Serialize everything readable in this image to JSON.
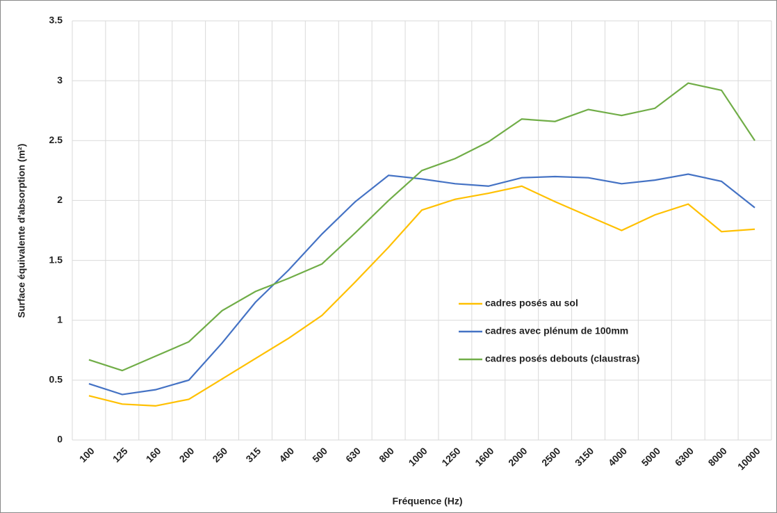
{
  "chart_data": {
    "type": "line",
    "x_label": "Fréquence (Hz)",
    "y_label": "Surface équivalente d'absorption (m²)",
    "categories": [
      "100",
      "125",
      "160",
      "200",
      "250",
      "315",
      "400",
      "500",
      "630",
      "800",
      "1000",
      "1250",
      "1600",
      "2000",
      "2500",
      "3150",
      "4000",
      "5000",
      "6300",
      "8000",
      "10000"
    ],
    "series": [
      {
        "name": "cadres posés au sol",
        "color": "#ffc000",
        "values": [
          0.37,
          0.3,
          0.285,
          0.34,
          0.51,
          0.68,
          0.85,
          1.04,
          1.32,
          1.61,
          1.92,
          2.01,
          2.06,
          2.12,
          1.99,
          1.87,
          1.75,
          1.88,
          1.97,
          1.74,
          1.76
        ]
      },
      {
        "name": "cadres avec plénum de 100mm",
        "color": "#4472c4",
        "values": [
          0.47,
          0.38,
          0.42,
          0.5,
          0.81,
          1.15,
          1.42,
          1.72,
          1.99,
          2.21,
          2.18,
          2.14,
          2.12,
          2.19,
          2.2,
          2.19,
          2.14,
          2.17,
          2.22,
          2.16,
          1.94
        ]
      },
      {
        "name": "cadres posés debouts (claustras)",
        "color": "#70ad47",
        "values": [
          0.67,
          0.58,
          0.7,
          0.82,
          1.08,
          1.24,
          1.35,
          1.47,
          1.73,
          2.0,
          2.25,
          2.35,
          2.49,
          2.68,
          2.66,
          2.76,
          2.71,
          2.77,
          2.98,
          2.92,
          2.5
        ]
      }
    ],
    "ylim": [
      0,
      3.5
    ],
    "yticks": [
      0,
      0.5,
      1,
      1.5,
      2,
      2.5,
      3,
      3.5
    ],
    "grid": true
  }
}
